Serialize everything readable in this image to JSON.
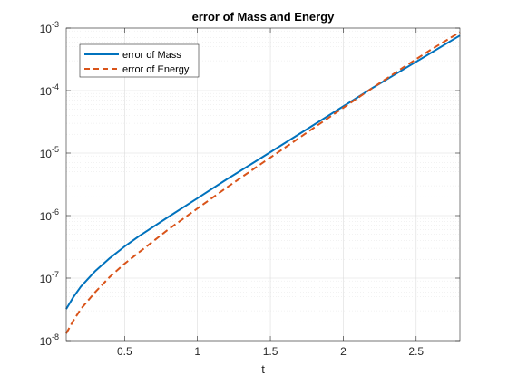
{
  "chart_data": {
    "type": "line",
    "title": "error of Mass and Energy",
    "xlabel": "t",
    "ylabel": "",
    "xlim": [
      0.1,
      2.8
    ],
    "ylim": [
      1e-08,
      0.001
    ],
    "yscale": "log",
    "grid": true,
    "minor_grid": true,
    "legend_position": "top-left",
    "x_ticks": [
      0.5,
      1,
      1.5,
      2,
      2.5
    ],
    "x_tick_labels": [
      "0.5",
      "1",
      "1.5",
      "2",
      "2.5"
    ],
    "y_ticks": [
      1e-08,
      1e-07,
      1e-06,
      1e-05,
      0.0001,
      0.001
    ],
    "y_tick_labels": [
      {
        "base": "10",
        "exp": "-8"
      },
      {
        "base": "10",
        "exp": "-7"
      },
      {
        "base": "10",
        "exp": "-6"
      },
      {
        "base": "10",
        "exp": "-5"
      },
      {
        "base": "10",
        "exp": "-4"
      },
      {
        "base": "10",
        "exp": "-3"
      }
    ],
    "series": [
      {
        "name": "error of Mass",
        "color": "#0072BD",
        "style": "solid",
        "x": [
          0.1,
          0.15,
          0.2,
          0.3,
          0.4,
          0.5,
          0.6,
          0.8,
          1.0,
          1.2,
          1.4,
          1.6,
          1.8,
          2.0,
          2.2,
          2.4,
          2.6,
          2.8
        ],
        "y": [
          3.2e-08,
          5e-08,
          7.3e-08,
          1.3e-07,
          2.1e-07,
          3.2e-07,
          4.7e-07,
          9.5e-07,
          1.9e-06,
          3.8e-06,
          7.4e-06,
          1.45e-05,
          2.85e-05,
          5.6e-05,
          0.00011,
          0.00021,
          0.0004,
          0.00076
        ]
      },
      {
        "name": "error of Energy",
        "color": "#D95319",
        "style": "dashed",
        "x": [
          0.1,
          0.15,
          0.2,
          0.3,
          0.4,
          0.5,
          0.6,
          0.8,
          1.0,
          1.2,
          1.4,
          1.6,
          1.8,
          2.0,
          2.2,
          2.4,
          2.6,
          2.8
        ],
        "y": [
          1.3e-08,
          2.1e-08,
          3.2e-08,
          6e-08,
          1.05e-07,
          1.7e-07,
          2.6e-07,
          6e-07,
          1.3e-06,
          2.8e-06,
          5.9e-06,
          1.22e-05,
          2.55e-05,
          5.3e-05,
          0.00011,
          0.000225,
          0.00045,
          0.00086
        ]
      }
    ]
  }
}
